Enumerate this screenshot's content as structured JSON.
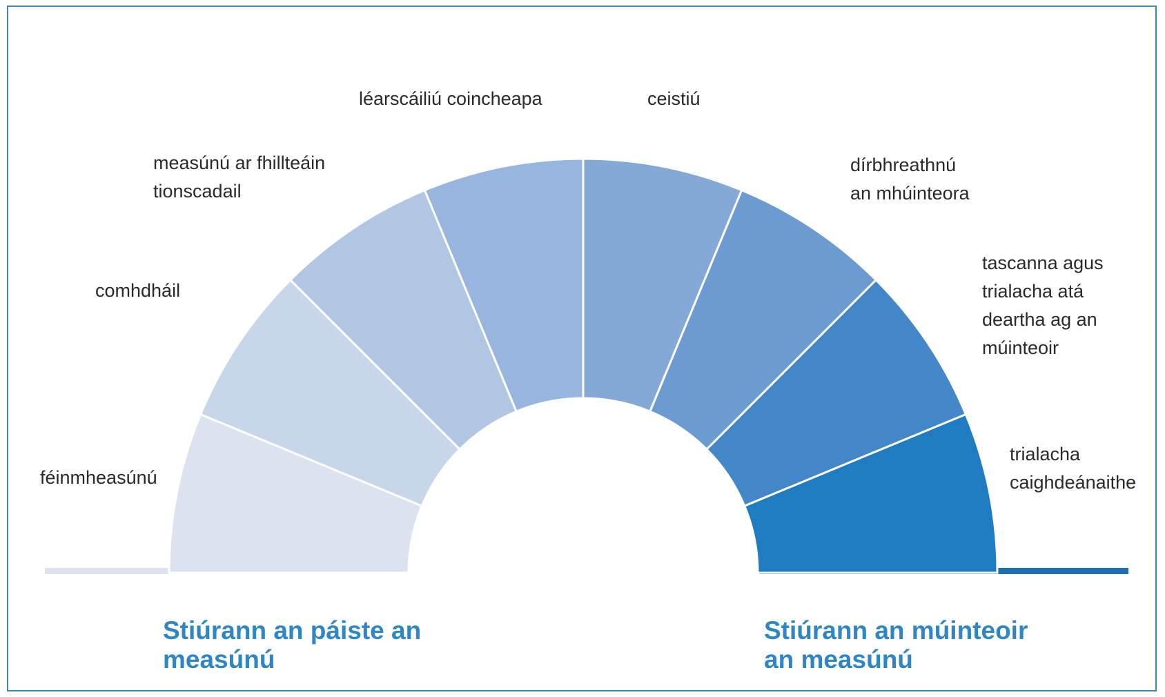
{
  "segments": [
    {
      "lines": [
        "féinmheasúnú"
      ],
      "color": "#dce3ef"
    },
    {
      "lines": [
        "comhdháil"
      ],
      "color": "#c8d6ea"
    },
    {
      "lines": [
        "measúnú ar fhillteáin",
        "tionscadail"
      ],
      "color": "#b0c6e3"
    },
    {
      "lines": [
        "léarscáiliú coincheapa"
      ],
      "color": "#97b5dd"
    },
    {
      "lines": [
        "ceistiú"
      ],
      "color": "#84a9d6"
    },
    {
      "lines": [
        "dírbhreathnú",
        "an mhúinteora"
      ],
      "color": "#6b9bd0"
    },
    {
      "lines": [
        "tascanna agus",
        "trialacha atá",
        "deartha ag an",
        "múinteoir"
      ],
      "color": "#4487c8"
    },
    {
      "lines": [
        "trialacha",
        "caighdeánaithe"
      ],
      "color": "#1f7cc1"
    }
  ],
  "left_caption": "Stiúrann an páiste an\nmeasúnú",
  "right_caption": "Stiúrann an múinteoir\nan measúnú",
  "colors": {
    "left_baseline": "#dce3ef",
    "right_baseline": "#1d70b0",
    "caption": "#2f86c2",
    "frame": "#3f87a6"
  }
}
